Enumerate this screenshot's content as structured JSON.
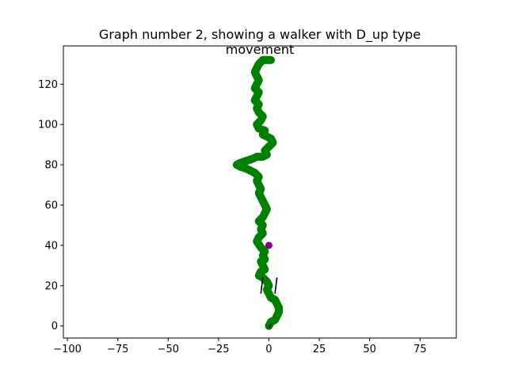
{
  "chart_data": {
    "type": "scatter",
    "title": "Graph number 2, showing a walker with D_up type movement",
    "xlabel": "",
    "ylabel": "",
    "xlim": [
      -102,
      93
    ],
    "ylim": [
      -6,
      139
    ],
    "xticks": [
      -100,
      -75,
      -50,
      -25,
      0,
      25,
      50,
      75
    ],
    "yticks": [
      0,
      20,
      40,
      60,
      80,
      100,
      120
    ],
    "grid": false,
    "colors": {
      "walker": "#008000",
      "marker": "#800080",
      "segments": "#000000",
      "frame": "#000000"
    },
    "walker_path": [
      [
        0,
        0
      ],
      [
        1,
        2
      ],
      [
        3,
        3
      ],
      [
        4,
        5
      ],
      [
        5,
        7
      ],
      [
        5,
        9
      ],
      [
        4,
        11
      ],
      [
        3,
        13
      ],
      [
        1,
        14
      ],
      [
        0,
        16
      ],
      [
        -1,
        18
      ],
      [
        0,
        20
      ],
      [
        -1,
        22
      ],
      [
        -3,
        24
      ],
      [
        -5,
        25
      ],
      [
        -4,
        27
      ],
      [
        -2,
        28
      ],
      [
        -3,
        30
      ],
      [
        -4,
        32
      ],
      [
        -2,
        33
      ],
      [
        -3,
        35
      ],
      [
        -2,
        37
      ],
      [
        -4,
        39
      ],
      [
        -6,
        42
      ],
      [
        -5,
        44
      ],
      [
        -3,
        46
      ],
      [
        -4,
        48
      ],
      [
        -3,
        50
      ],
      [
        -5,
        52
      ],
      [
        -3,
        54
      ],
      [
        -2,
        56
      ],
      [
        -1,
        58
      ],
      [
        -2,
        60
      ],
      [
        -3,
        62
      ],
      [
        -4,
        64
      ],
      [
        -5,
        66
      ],
      [
        -4,
        68
      ],
      [
        -5,
        70
      ],
      [
        -6,
        72
      ],
      [
        -5,
        74
      ],
      [
        -7,
        76
      ],
      [
        -9,
        77
      ],
      [
        -11,
        78
      ],
      [
        -14,
        79
      ],
      [
        -16,
        80
      ],
      [
        -14,
        81
      ],
      [
        -11,
        82
      ],
      [
        -8,
        83
      ],
      [
        -6,
        84
      ],
      [
        -3,
        84
      ],
      [
        -1,
        85
      ],
      [
        -2,
        87
      ],
      [
        0,
        89
      ],
      [
        2,
        91
      ],
      [
        1,
        93
      ],
      [
        -1,
        94
      ],
      [
        -3,
        95
      ],
      [
        -2,
        97
      ],
      [
        -5,
        98
      ],
      [
        -6,
        100
      ],
      [
        -4,
        102
      ],
      [
        -3,
        104
      ],
      [
        -5,
        106
      ],
      [
        -6,
        108
      ],
      [
        -5,
        110
      ],
      [
        -7,
        112
      ],
      [
        -6,
        114
      ],
      [
        -5,
        116
      ],
      [
        -7,
        118
      ],
      [
        -6,
        120
      ],
      [
        -5,
        122
      ],
      [
        -6,
        124
      ],
      [
        -7,
        126
      ],
      [
        -6,
        128
      ],
      [
        -5,
        130
      ],
      [
        -4,
        131
      ],
      [
        -3,
        132
      ],
      [
        -1,
        132
      ],
      [
        1,
        132
      ]
    ],
    "marker_point": [
      0,
      40
    ],
    "segments": [
      {
        "x": [
          -4,
          -3
        ],
        "y": [
          16,
          24
        ]
      },
      {
        "x": [
          3,
          4
        ],
        "y": [
          16,
          24
        ]
      },
      {
        "x": [
          0,
          1
        ],
        "y": [
          -1,
          1
        ]
      }
    ]
  }
}
